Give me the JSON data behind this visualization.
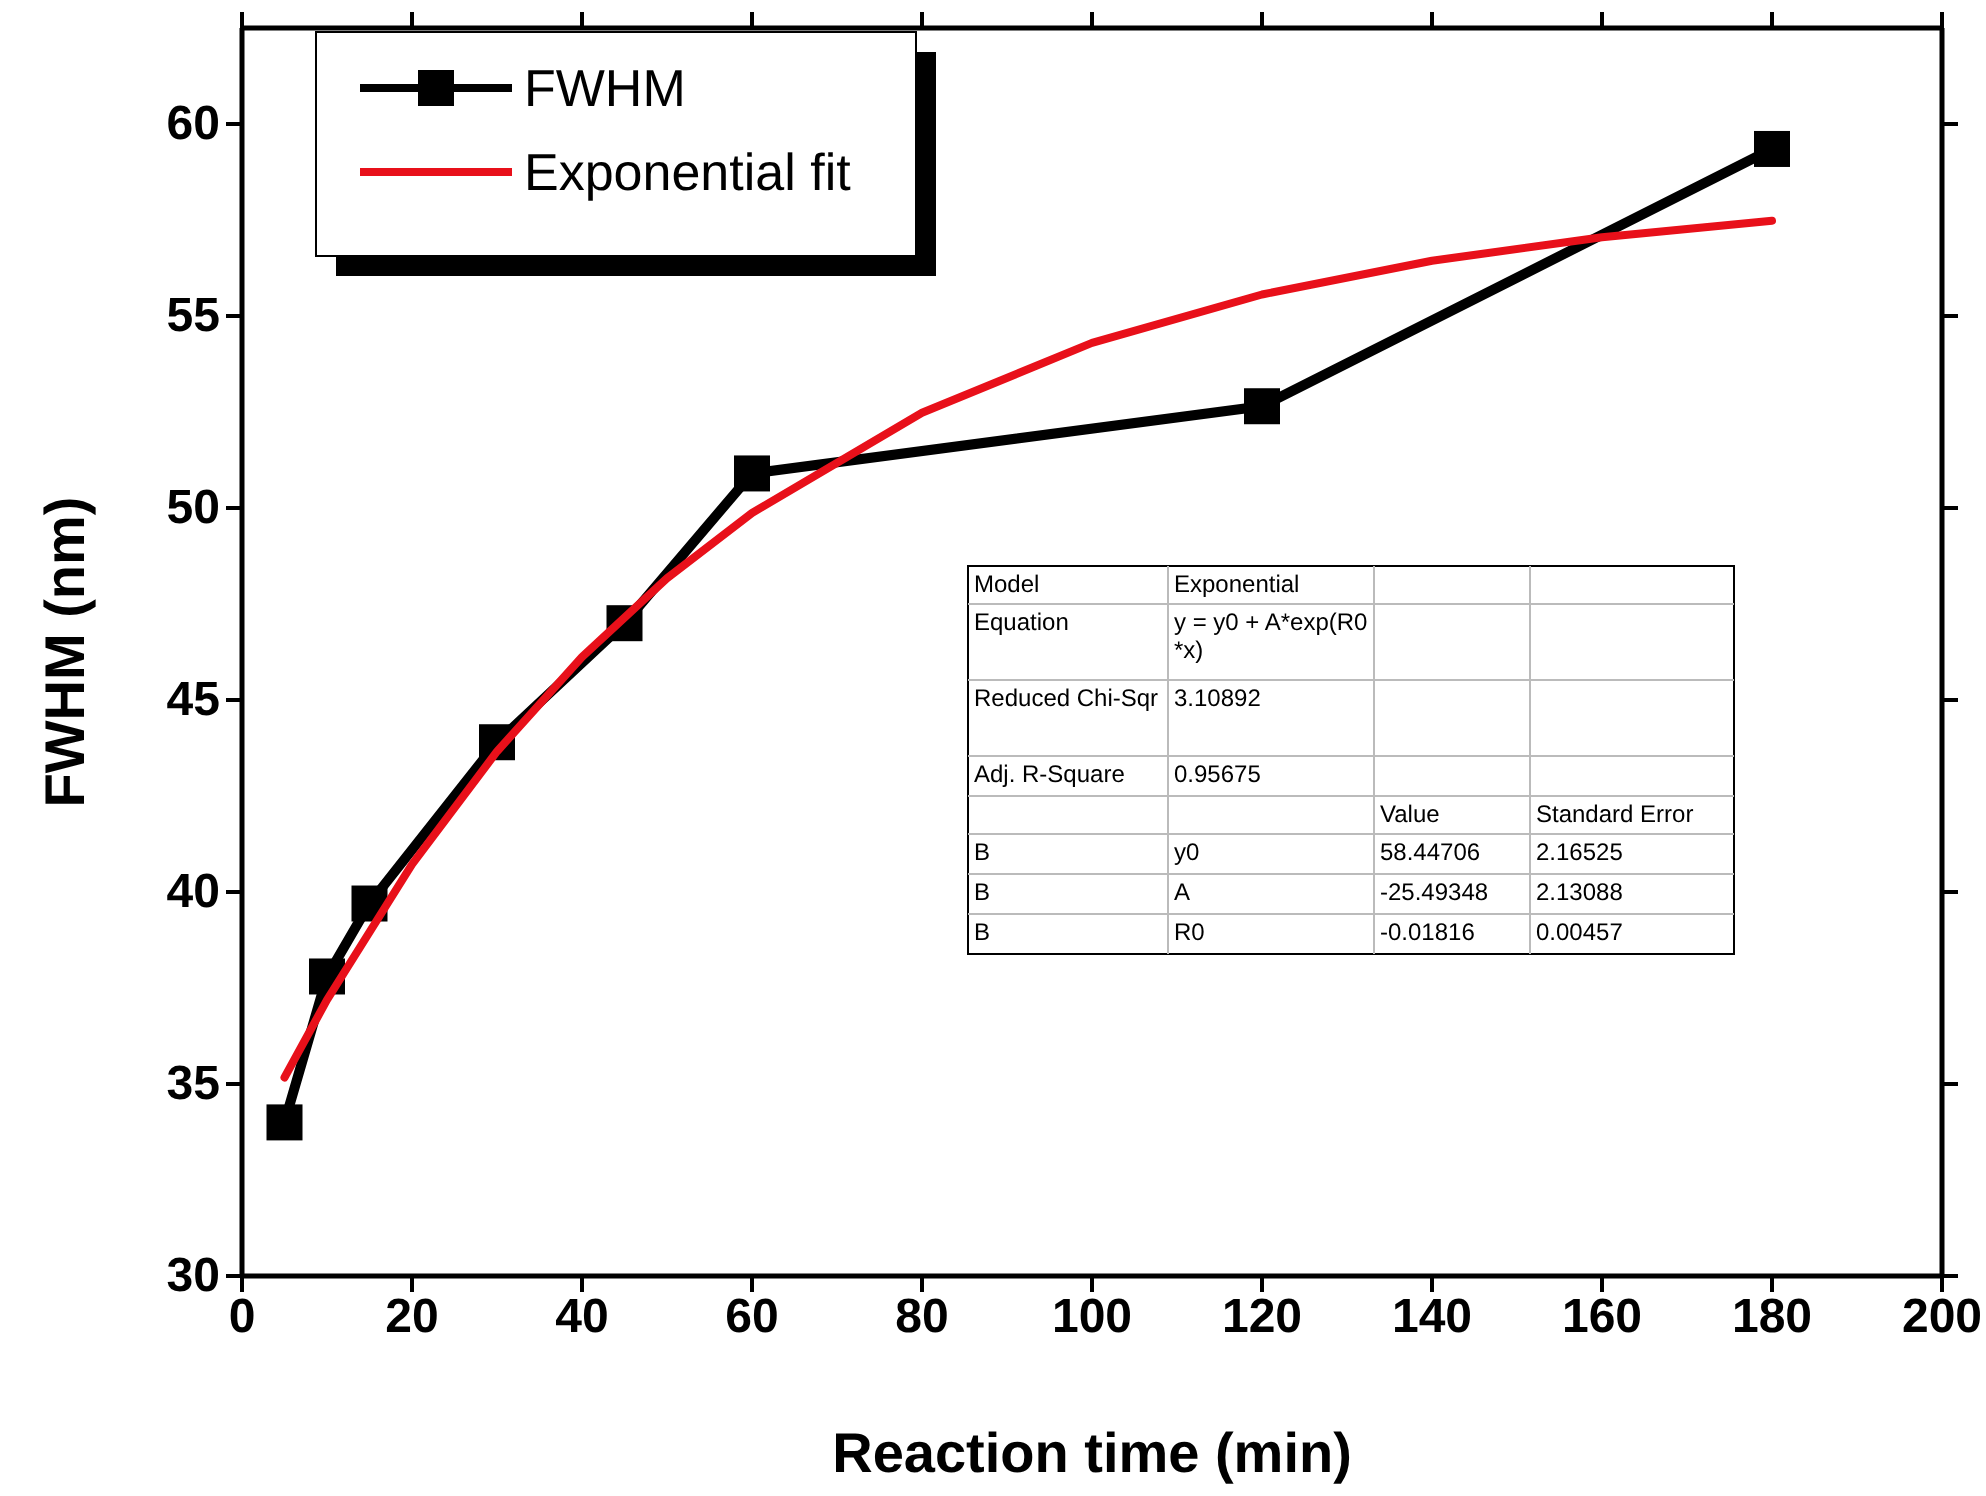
{
  "chart_data": {
    "type": "line",
    "xlabel": "Reaction time (min)",
    "ylabel": "FWHM (nm)",
    "xlim": [
      0,
      200
    ],
    "xticks": [
      0,
      20,
      40,
      60,
      80,
      100,
      120,
      140,
      160,
      180,
      200
    ],
    "ylim": [
      30,
      62.5
    ],
    "yticks": [
      30,
      35,
      40,
      45,
      50,
      55,
      60
    ],
    "legend": "top left",
    "grid": false,
    "series": [
      {
        "name": "FWHM",
        "color": "#000000",
        "marker": "square",
        "x": [
          5,
          10,
          15,
          30,
          45,
          60,
          120,
          180
        ],
        "values": [
          34.0,
          37.8,
          39.7,
          43.9,
          47.0,
          50.9,
          52.65,
          59.35
        ]
      },
      {
        "name": "Exponential fit",
        "color": "#e8101a",
        "marker": "none",
        "x": [
          5,
          10,
          20,
          30,
          40,
          50,
          60,
          80,
          100,
          120,
          140,
          160,
          180
        ],
        "values": [
          35.17,
          37.19,
          40.72,
          43.66,
          46.12,
          48.17,
          49.87,
          52.48,
          54.3,
          55.56,
          56.44,
          57.05,
          57.48
        ]
      }
    ],
    "annotations": [
      "Model",
      "Exponential",
      "Equation",
      "y = y0 + A*exp(R0*x)",
      "Reduced Chi-Sqr",
      "3.10892",
      "Adj. R-Square",
      "0.95675",
      "Value",
      "Standard Error",
      "B",
      "y0",
      "58.44706",
      "2.16525",
      "B",
      "A",
      "-25.49348",
      "2.13088",
      "B",
      "R0",
      "-0.01816",
      "0.00457"
    ]
  }
}
